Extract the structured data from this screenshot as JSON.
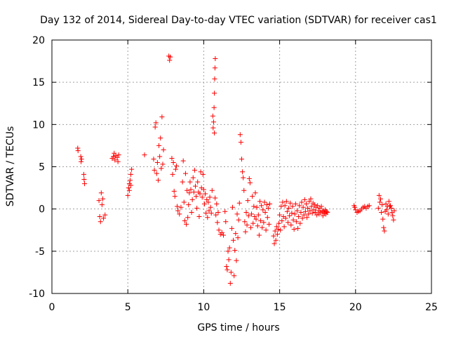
{
  "chart_data": {
    "type": "scatter",
    "title": "Day 132 of 2014, Sidereal Day-to-day VTEC variation (SDTVAR) for receiver cas1",
    "xlabel": "GPS time / hours",
    "ylabel": "SDTVAR / TECUs",
    "xlim": [
      0,
      25
    ],
    "ylim": [
      -10,
      20
    ],
    "xticks": [
      0,
      5,
      10,
      15,
      20,
      25
    ],
    "yticks": [
      -10,
      -5,
      0,
      5,
      10,
      15,
      20
    ],
    "grid": true,
    "legend": "none",
    "marker": "plus",
    "marker_color": "#ff0000",
    "series": [
      {
        "name": "SDTVAR",
        "points": [
          [
            1.7,
            7.2
          ],
          [
            1.72,
            6.9
          ],
          [
            1.9,
            6.2
          ],
          [
            1.92,
            5.6
          ],
          [
            1.95,
            5.9
          ],
          [
            2.1,
            4.1
          ],
          [
            2.15,
            3.0
          ],
          [
            2.12,
            3.5
          ],
          [
            3.1,
            1.0
          ],
          [
            3.15,
            -0.9
          ],
          [
            3.2,
            -1.5
          ],
          [
            3.25,
            1.9
          ],
          [
            3.3,
            0.5
          ],
          [
            3.35,
            1.2
          ],
          [
            3.4,
            -1.1
          ],
          [
            3.5,
            -0.7
          ],
          [
            3.97,
            6.0
          ],
          [
            4.05,
            6.2
          ],
          [
            4.1,
            6.6
          ],
          [
            4.15,
            5.8
          ],
          [
            4.2,
            6.3
          ],
          [
            4.3,
            6.1
          ],
          [
            4.35,
            5.6
          ],
          [
            4.4,
            6.4
          ],
          [
            5.0,
            1.6
          ],
          [
            5.05,
            2.5
          ],
          [
            5.1,
            3.0
          ],
          [
            5.15,
            3.4
          ],
          [
            5.2,
            4.1
          ],
          [
            5.25,
            4.7
          ],
          [
            5.1,
            2.2
          ],
          [
            5.2,
            2.8
          ],
          [
            6.1,
            6.4
          ],
          [
            6.7,
            5.9
          ],
          [
            6.75,
            4.6
          ],
          [
            6.8,
            9.7
          ],
          [
            6.85,
            10.2
          ],
          [
            6.9,
            4.2
          ],
          [
            6.95,
            5.5
          ],
          [
            7.0,
            3.4
          ],
          [
            7.05,
            7.5
          ],
          [
            7.1,
            6.2
          ],
          [
            7.15,
            8.4
          ],
          [
            7.2,
            4.8
          ],
          [
            7.25,
            10.9
          ],
          [
            7.3,
            5.3
          ],
          [
            7.35,
            7.0
          ],
          [
            7.7,
            18.1
          ],
          [
            7.75,
            17.6
          ],
          [
            7.8,
            18.0
          ],
          [
            7.9,
            6.0
          ],
          [
            7.95,
            4.1
          ],
          [
            8.0,
            5.5
          ],
          [
            8.05,
            2.1
          ],
          [
            8.1,
            1.5
          ],
          [
            8.15,
            4.7
          ],
          [
            8.2,
            5.1
          ],
          [
            8.25,
            0.3
          ],
          [
            8.3,
            -0.2
          ],
          [
            8.4,
            -0.6
          ],
          [
            8.5,
            0.2
          ],
          [
            8.6,
            3.2
          ],
          [
            8.65,
            5.7
          ],
          [
            8.7,
            0.8
          ],
          [
            8.75,
            -1.4
          ],
          [
            8.8,
            4.2
          ],
          [
            8.85,
            -1.8
          ],
          [
            8.9,
            2.2
          ],
          [
            8.95,
            -1.0
          ],
          [
            9.0,
            0.5
          ],
          [
            9.05,
            1.9
          ],
          [
            9.1,
            3.2
          ],
          [
            9.15,
            2.3
          ],
          [
            9.2,
            -0.4
          ],
          [
            9.25,
            1.1
          ],
          [
            9.3,
            3.7
          ],
          [
            9.35,
            2.0
          ],
          [
            9.4,
            4.6
          ],
          [
            9.45,
            2.7
          ],
          [
            9.5,
            1.5
          ],
          [
            9.55,
            0.1
          ],
          [
            9.6,
            3.2
          ],
          [
            9.65,
            2.0
          ],
          [
            9.7,
            -0.9
          ],
          [
            9.75,
            1.8
          ],
          [
            9.8,
            4.4
          ],
          [
            9.85,
            2.5
          ],
          [
            9.9,
            1.4
          ],
          [
            9.95,
            4.1
          ],
          [
            10.0,
            2.3
          ],
          [
            10.05,
            0.6
          ],
          [
            10.1,
            1.8
          ],
          [
            10.15,
            -0.5
          ],
          [
            10.2,
            1.1
          ],
          [
            10.25,
            -1.0
          ],
          [
            10.3,
            0.8
          ],
          [
            10.35,
            -0.2
          ],
          [
            10.4,
            1.4
          ],
          [
            10.45,
            0.2
          ],
          [
            10.5,
            -0.5
          ],
          [
            10.55,
            2.2
          ],
          [
            10.6,
            11.0
          ],
          [
            10.62,
            9.6
          ],
          [
            10.65,
            10.3
          ],
          [
            10.68,
            12.0
          ],
          [
            10.7,
            13.7
          ],
          [
            10.72,
            15.4
          ],
          [
            10.74,
            16.7
          ],
          [
            10.76,
            17.8
          ],
          [
            10.7,
            9.0
          ],
          [
            10.75,
            1.3
          ],
          [
            10.8,
            -0.7
          ],
          [
            10.85,
            0.6
          ],
          [
            10.9,
            -1.6
          ],
          [
            10.95,
            -0.4
          ],
          [
            11.0,
            -2.5
          ],
          [
            11.1,
            -3.0
          ],
          [
            11.2,
            -2.8
          ],
          [
            11.3,
            -3.1
          ],
          [
            11.4,
            -0.3
          ],
          [
            11.45,
            -1.5
          ],
          [
            11.5,
            -6.8
          ],
          [
            11.55,
            -7.2
          ],
          [
            11.6,
            -5.0
          ],
          [
            11.65,
            -6.0
          ],
          [
            11.7,
            -4.6
          ],
          [
            11.75,
            -8.8
          ],
          [
            11.8,
            -7.5
          ],
          [
            11.85,
            -2.3
          ],
          [
            11.9,
            0.2
          ],
          [
            11.95,
            -3.7
          ],
          [
            12.0,
            -7.9
          ],
          [
            12.05,
            -4.9
          ],
          [
            12.1,
            -2.9
          ],
          [
            12.15,
            -6.1
          ],
          [
            12.2,
            -0.6
          ],
          [
            12.25,
            -3.4
          ],
          [
            12.3,
            -1.3
          ],
          [
            12.35,
            0.7
          ],
          [
            12.4,
            8.8
          ],
          [
            12.45,
            7.9
          ],
          [
            12.5,
            5.9
          ],
          [
            12.55,
            4.4
          ],
          [
            12.6,
            3.7
          ],
          [
            12.65,
            2.2
          ],
          [
            12.7,
            -1.5
          ],
          [
            12.75,
            -2.7
          ],
          [
            12.8,
            -0.4
          ],
          [
            12.85,
            -1.9
          ],
          [
            12.9,
            1.0
          ],
          [
            12.95,
            -0.8
          ],
          [
            13.0,
            3.6
          ],
          [
            13.05,
            3.1
          ],
          [
            13.1,
            -2.2
          ],
          [
            13.15,
            -0.6
          ],
          [
            13.2,
            1.5
          ],
          [
            13.25,
            -1.7
          ],
          [
            13.3,
            0.3
          ],
          [
            13.35,
            -0.9
          ],
          [
            13.4,
            1.9
          ],
          [
            13.45,
            -1.2
          ],
          [
            13.5,
            0.2
          ],
          [
            13.55,
            -2.0
          ],
          [
            13.6,
            -0.7
          ],
          [
            13.65,
            -3.1
          ],
          [
            13.7,
            0.9
          ],
          [
            13.75,
            -1.4
          ],
          [
            13.8,
            0.4
          ],
          [
            13.85,
            -2.2
          ],
          [
            13.9,
            -0.1
          ],
          [
            13.95,
            -1.6
          ],
          [
            14.0,
            0.8
          ],
          [
            14.05,
            -0.4
          ],
          [
            14.1,
            -2.5
          ],
          [
            14.15,
            0.5
          ],
          [
            14.2,
            -1.0
          ],
          [
            14.25,
            0.1
          ],
          [
            14.3,
            -1.8
          ],
          [
            14.35,
            0.6
          ],
          [
            14.6,
            -3.2
          ],
          [
            14.65,
            -4.1
          ],
          [
            14.7,
            -2.6
          ],
          [
            14.75,
            -3.7
          ],
          [
            14.8,
            -2.1
          ],
          [
            14.85,
            -3.0
          ],
          [
            14.9,
            -2.4
          ],
          [
            14.95,
            -1.7
          ],
          [
            15.0,
            -0.7
          ],
          [
            15.05,
            -2.5
          ],
          [
            15.1,
            0.3
          ],
          [
            15.15,
            -1.4
          ],
          [
            15.2,
            0.8
          ],
          [
            15.25,
            -0.9
          ],
          [
            15.3,
            -2.1
          ],
          [
            15.35,
            0.4
          ],
          [
            15.4,
            -1.1
          ],
          [
            15.45,
            0.9
          ],
          [
            15.5,
            -0.3
          ],
          [
            15.55,
            -1.6
          ],
          [
            15.6,
            0.1
          ],
          [
            15.65,
            -0.8
          ],
          [
            15.7,
            0.7
          ],
          [
            15.75,
            -1.9
          ],
          [
            15.8,
            -0.5
          ],
          [
            15.85,
            0.3
          ],
          [
            15.9,
            -1.3
          ],
          [
            15.95,
            -2.4
          ],
          [
            16.0,
            -0.6
          ],
          [
            16.05,
            0.6
          ],
          [
            16.1,
            -1.5
          ],
          [
            16.15,
            -0.2
          ],
          [
            16.2,
            -2.3
          ],
          [
            16.25,
            -0.9
          ],
          [
            16.3,
            0.4
          ],
          [
            16.35,
            -1.7
          ],
          [
            16.4,
            -0.4
          ],
          [
            16.45,
            0.8
          ],
          [
            16.5,
            -1.1
          ],
          [
            16.55,
            0.2
          ],
          [
            16.6,
            -0.7
          ],
          [
            16.65,
            1.1
          ],
          [
            16.7,
            -0.3
          ],
          [
            16.75,
            0.6
          ],
          [
            16.8,
            -1.0
          ],
          [
            16.85,
            0.1
          ],
          [
            16.9,
            -0.6
          ],
          [
            16.95,
            0.9
          ],
          [
            17.0,
            -0.2
          ],
          [
            17.05,
            1.2
          ],
          [
            17.1,
            0.3
          ],
          [
            17.15,
            -0.5
          ],
          [
            17.2,
            0.7
          ],
          [
            17.25,
            -0.1
          ],
          [
            17.3,
            0.5
          ],
          [
            17.35,
            -0.4
          ],
          [
            17.4,
            0.2
          ],
          [
            17.45,
            -0.7
          ],
          [
            17.5,
            0.4
          ],
          [
            17.55,
            -0.2
          ],
          [
            17.6,
            -0.6
          ],
          [
            17.65,
            0.1
          ],
          [
            17.7,
            -0.4
          ],
          [
            17.75,
            0.3
          ],
          [
            17.8,
            -0.3
          ],
          [
            17.85,
            -0.8
          ],
          [
            17.9,
            -0.2
          ],
          [
            17.95,
            -0.5
          ],
          [
            18.0,
            -0.1
          ],
          [
            18.05,
            -0.6
          ],
          [
            18.1,
            -0.3
          ],
          [
            18.15,
            -0.4
          ],
          [
            19.9,
            0.4
          ],
          [
            19.95,
            0.2
          ],
          [
            20.0,
            -0.1
          ],
          [
            20.1,
            -0.4
          ],
          [
            20.2,
            -0.3
          ],
          [
            20.3,
            -0.2
          ],
          [
            20.4,
            0.0
          ],
          [
            20.5,
            0.2
          ],
          [
            20.6,
            0.3
          ],
          [
            20.7,
            0.1
          ],
          [
            20.8,
            0.3
          ],
          [
            20.9,
            0.4
          ],
          [
            21.5,
            0.1
          ],
          [
            21.55,
            1.6
          ],
          [
            21.6,
            0.8
          ],
          [
            21.65,
            1.2
          ],
          [
            21.7,
            -0.4
          ],
          [
            21.75,
            0.5
          ],
          [
            21.8,
            -1.2
          ],
          [
            21.85,
            -2.2
          ],
          [
            21.9,
            -2.6
          ],
          [
            21.95,
            -0.3
          ],
          [
            22.0,
            0.6
          ],
          [
            22.05,
            -0.1
          ],
          [
            22.1,
            0.3
          ],
          [
            22.15,
            -0.6
          ],
          [
            22.2,
            0.9
          ],
          [
            22.25,
            0.3
          ],
          [
            22.3,
            0.4
          ],
          [
            22.35,
            0.1
          ],
          [
            22.4,
            -0.4
          ],
          [
            22.45,
            -0.8
          ],
          [
            22.5,
            -1.3
          ],
          [
            22.55,
            -0.2
          ]
        ]
      }
    ]
  }
}
